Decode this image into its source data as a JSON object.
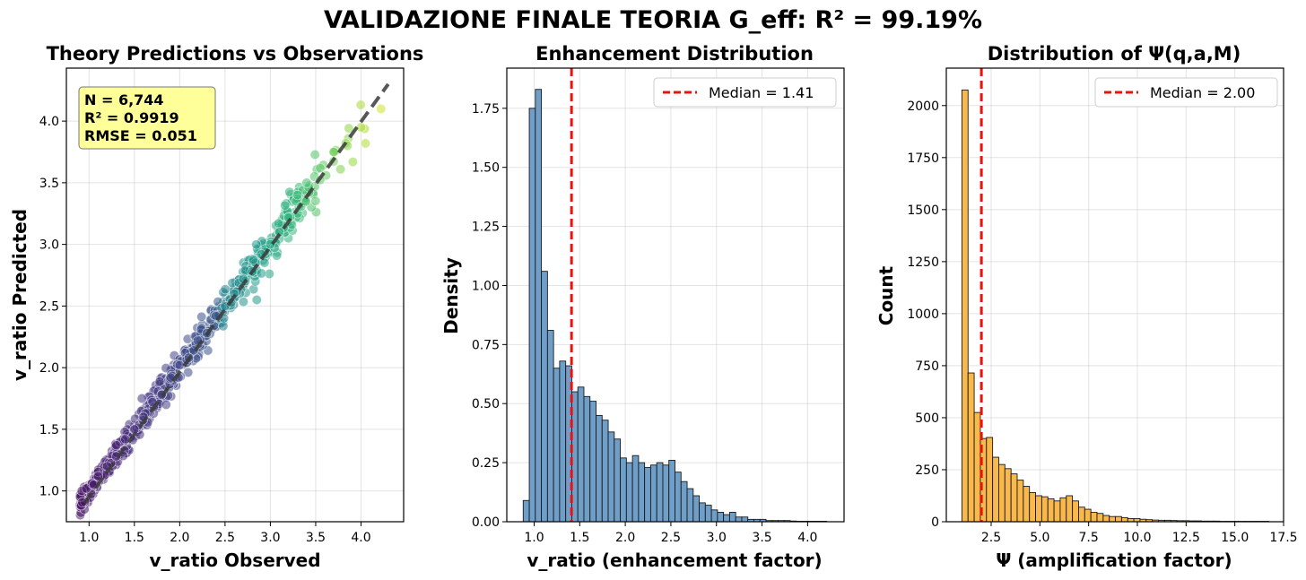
{
  "figure": {
    "title": "VALIDAZIONE FINALE TEORIA G_eff: R² = 99.19%"
  },
  "chart_data": [
    {
      "type": "scatter",
      "title": "Theory Predictions vs Observations",
      "xlabel": "v_ratio Observed",
      "ylabel": "v_ratio Predicted",
      "xlim": [
        0.75,
        4.47
      ],
      "ylim": [
        0.75,
        4.43
      ],
      "xticks": [
        "1.0",
        "1.5",
        "2.0",
        "2.5",
        "3.0",
        "3.5",
        "4.0"
      ],
      "yticks": [
        "1.0",
        "1.5",
        "2.0",
        "2.5",
        "3.0",
        "3.5",
        "4.0"
      ],
      "grid": true,
      "stats_box": {
        "placement": "top-left",
        "lines": [
          "N = 6,744",
          "R² = 0.9919",
          "RMSE = 0.051"
        ],
        "color": "#ffff99"
      },
      "reference_line": {
        "x": [
          0.95,
          4.3
        ],
        "y": [
          0.9,
          4.3
        ],
        "style": "dashed",
        "color": "#3a3a3a"
      },
      "colormap": "viridis",
      "n_points": 6744,
      "sample_points": [
        [
          0.92,
          1.0
        ],
        [
          0.97,
          1.02
        ],
        [
          1.05,
          1.05
        ],
        [
          1.1,
          1.12
        ],
        [
          1.2,
          1.2
        ],
        [
          1.3,
          1.28
        ],
        [
          1.4,
          1.42
        ],
        [
          1.5,
          1.5
        ],
        [
          1.6,
          1.6
        ],
        [
          1.7,
          1.72
        ],
        [
          1.8,
          1.78
        ],
        [
          1.9,
          1.92
        ],
        [
          2.0,
          2.02
        ],
        [
          2.1,
          2.08
        ],
        [
          2.2,
          2.22
        ],
        [
          2.3,
          2.28
        ],
        [
          2.4,
          2.42
        ],
        [
          2.5,
          2.5
        ],
        [
          2.6,
          2.6
        ],
        [
          2.7,
          2.72
        ],
        [
          2.8,
          2.78
        ],
        [
          2.9,
          2.92
        ],
        [
          3.0,
          3.0
        ],
        [
          3.1,
          3.1
        ],
        [
          3.2,
          3.22
        ],
        [
          3.3,
          3.4
        ],
        [
          3.4,
          3.5
        ],
        [
          3.55,
          3.62
        ],
        [
          3.7,
          3.75
        ],
        [
          3.85,
          3.8
        ],
        [
          4.0,
          3.95
        ],
        [
          4.05,
          3.82
        ],
        [
          4.22,
          4.1
        ],
        [
          2.85,
          2.55
        ],
        [
          1.85,
          1.7
        ]
      ]
    },
    {
      "type": "bar",
      "title": "Enhancement Distribution",
      "xlabel": "v_ratio (enhancement factor)",
      "ylabel": "Density",
      "xlim": [
        0.7,
        4.4
      ],
      "ylim": [
        0,
        1.92
      ],
      "xticks": [
        "1.0",
        "1.5",
        "2.0",
        "2.5",
        "3.0",
        "3.5",
        "4.0"
      ],
      "yticks": [
        "0.00",
        "0.25",
        "0.50",
        "0.75",
        "1.00",
        "1.25",
        "1.50",
        "1.75"
      ],
      "grid": true,
      "bin_start": 0.88,
      "bin_width": 0.0666,
      "values": [
        0.09,
        1.75,
        1.83,
        1.06,
        0.81,
        0.65,
        0.68,
        0.66,
        0.55,
        0.57,
        0.53,
        0.51,
        0.45,
        0.43,
        0.38,
        0.35,
        0.27,
        0.25,
        0.28,
        0.25,
        0.23,
        0.24,
        0.25,
        0.24,
        0.26,
        0.21,
        0.17,
        0.14,
        0.11,
        0.08,
        0.07,
        0.05,
        0.04,
        0.03,
        0.04,
        0.02,
        0.02,
        0.01,
        0.01,
        0.01,
        0.005,
        0.005,
        0.005,
        0.005,
        0.003,
        0.002,
        0.002,
        0.002,
        0.002,
        0.002
      ],
      "bar_color": "#6f9fc8",
      "median": {
        "value": 1.41,
        "label": "Median = 1.41",
        "color": "#e8140c"
      },
      "legend_position": "top-right"
    },
    {
      "type": "bar",
      "title": "Distribution of Ψ(q,a,M)",
      "xlabel": "Ψ (amplification factor)",
      "ylabel": "Count",
      "xlim": [
        0.2,
        17.5
      ],
      "ylim": [
        0,
        2180
      ],
      "xticks": [
        "2.5",
        "5.0",
        "7.5",
        "10.0",
        "12.5",
        "15.0",
        "17.5"
      ],
      "yticks": [
        "0",
        "250",
        "500",
        "750",
        "1000",
        "1250",
        "1500",
        "1750",
        "2000"
      ],
      "grid": true,
      "bin_start": 1.0,
      "bin_width": 0.315,
      "values": [
        2075,
        715,
        525,
        400,
        405,
        310,
        275,
        255,
        230,
        200,
        170,
        140,
        125,
        120,
        110,
        100,
        115,
        125,
        100,
        70,
        60,
        45,
        40,
        30,
        25,
        25,
        20,
        15,
        15,
        12,
        10,
        8,
        7,
        7,
        6,
        5,
        5,
        4,
        4,
        3,
        3,
        3,
        2,
        2,
        2,
        2,
        2,
        2,
        2,
        2
      ],
      "bar_color": "#f9b84b",
      "median": {
        "value": 2.0,
        "label": "Median = 2.00",
        "color": "#e8140c"
      },
      "legend_position": "top-right"
    }
  ]
}
